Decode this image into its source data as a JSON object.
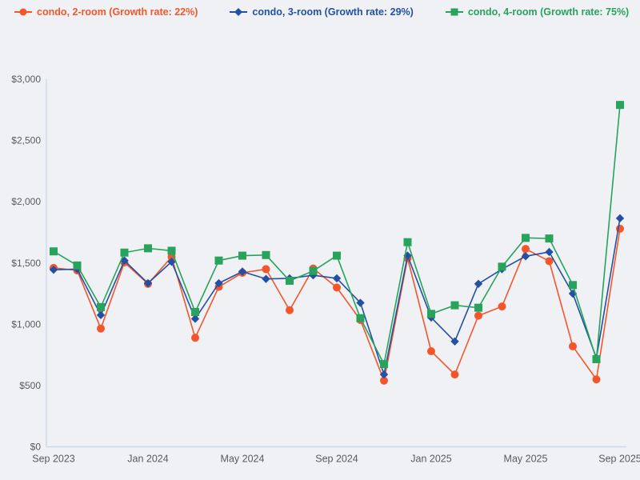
{
  "colors": {
    "background": "#eff1f5",
    "axis_line": "#c9d6e8",
    "tick_text": "#5b5b5b",
    "series_orange": "#f4562b",
    "series_blue": "#2450a4",
    "series_green": "#27a35c"
  },
  "legend": {
    "position": "top-left",
    "items": [
      {
        "label": "condo, 2-room (Growth rate: 22%)",
        "marker": "circle",
        "color": "#f4562b"
      },
      {
        "label": "condo, 3-room (Growth rate: 29%)",
        "marker": "diamond",
        "color": "#2450a4"
      },
      {
        "label": "condo, 4-room (Growth rate: 75%)",
        "marker": "square",
        "color": "#27a35c"
      }
    ]
  },
  "chart_data": {
    "type": "line",
    "title": "",
    "xlabel": "",
    "ylabel": "",
    "grid": false,
    "legend_position": "top-left",
    "ylim": [
      0,
      3000
    ],
    "y_ticks": [
      0,
      500,
      1000,
      1500,
      2000,
      2500,
      3000
    ],
    "y_tick_labels": [
      "$0",
      "$500",
      "$1,000",
      "$1,500",
      "$2,000",
      "$2,500",
      "$3,000"
    ],
    "x": [
      "Sep 2023",
      "Oct 2023",
      "Nov 2023",
      "Dec 2023",
      "Jan 2024",
      "Feb 2024",
      "Mar 2024",
      "Apr 2024",
      "May 2024",
      "Jun 2024",
      "Jul 2024",
      "Aug 2024",
      "Sep 2024",
      "Oct 2024",
      "Nov 2024",
      "Dec 2024",
      "Jan 2025",
      "Feb 2025",
      "Mar 2025",
      "Apr 2025",
      "May 2025",
      "Jun 2025",
      "Jul 2025",
      "Aug 2025",
      "Sep 2025"
    ],
    "x_tick_indices": [
      0,
      4,
      8,
      12,
      16,
      20,
      24
    ],
    "x_tick_labels": [
      "Sep 2023",
      "Jan 2024",
      "May 2024",
      "Sep 2024",
      "Jan 2025",
      "May 2025",
      "Sep 2025"
    ],
    "series": [
      {
        "name": "condo, 2-room",
        "growth_rate": "22%",
        "legend_label": "condo, 2-room (Growth rate: 22%)",
        "color": "#f4562b",
        "marker": "circle",
        "values": [
          1460,
          1440,
          965,
          1505,
          1330,
          1550,
          890,
          1305,
          1420,
          1450,
          1115,
          1455,
          1300,
          1035,
          540,
          1540,
          780,
          590,
          1070,
          1145,
          1615,
          1515,
          820,
          550,
          1780
        ]
      },
      {
        "name": "condo, 3-room",
        "growth_rate": "29%",
        "legend_label": "condo, 3-room (Growth rate: 29%)",
        "color": "#2450a4",
        "marker": "diamond",
        "values": [
          1445,
          1450,
          1075,
          1520,
          1335,
          1510,
          1045,
          1335,
          1430,
          1370,
          1375,
          1400,
          1375,
          1175,
          590,
          1560,
          1055,
          860,
          1330,
          1450,
          1555,
          1590,
          1250,
          725,
          1865
        ]
      },
      {
        "name": "condo, 4-room",
        "growth_rate": "75%",
        "legend_label": "condo, 4-room (Growth rate: 75%)",
        "color": "#27a35c",
        "marker": "square",
        "values": [
          1595,
          1480,
          1140,
          1585,
          1620,
          1600,
          1100,
          1520,
          1560,
          1565,
          1355,
          1435,
          1560,
          1050,
          675,
          1670,
          1085,
          1155,
          1135,
          1470,
          1705,
          1700,
          1320,
          715,
          2790
        ]
      }
    ]
  }
}
